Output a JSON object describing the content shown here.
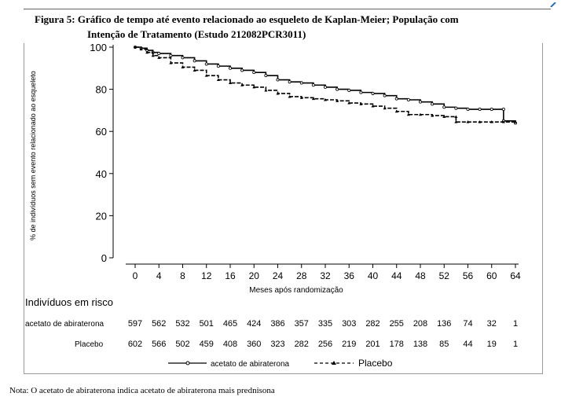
{
  "figure": {
    "title_line_1": "Figura 5: Gráfico de tempo até evento relacionado ao esqueleto de Kaplan-Meier; População com",
    "title_line_2": "Intenção de Tratamento (Estudo 212082PCR3011)",
    "footnote": "Nota: O acetato de abiraterona indica acetato de abiraterona mais prednisona"
  },
  "chart_data": {
    "type": "line",
    "title": "Gráfico de tempo até evento relacionado ao esqueleto de Kaplan-Meier; População com Intenção de Tratamento (Estudo 212082PCR3011)",
    "xlabel": "Meses após randomização",
    "ylabel": "% de indivíduos sem evento relacionado ao esqueleto",
    "xlim": [
      0,
      64
    ],
    "ylim": [
      0,
      100
    ],
    "xticks": [
      0,
      4,
      8,
      12,
      16,
      20,
      24,
      28,
      32,
      36,
      40,
      44,
      48,
      52,
      56,
      60,
      64
    ],
    "yticks": [
      0,
      20,
      40,
      60,
      80,
      100
    ],
    "legend_position": "bottom",
    "series": [
      {
        "name": "acetato de abiraterona",
        "style": "solid-circle",
        "color": "#000000",
        "x": [
          0,
          1,
          2,
          3,
          4,
          6,
          8,
          10,
          12,
          14,
          16,
          18,
          20,
          22,
          24,
          26,
          28,
          30,
          32,
          34,
          36,
          38,
          40,
          42,
          44,
          46,
          48,
          50,
          52,
          54,
          56,
          58,
          60,
          62,
          62,
          64
        ],
        "y": [
          100,
          99.5,
          98.5,
          97.5,
          97,
          96,
          95,
          93.5,
          92,
          91,
          90,
          89,
          88,
          86.5,
          84.5,
          83.5,
          83,
          82,
          81,
          80,
          79.5,
          78.5,
          78,
          77,
          75.5,
          75,
          74,
          73,
          71.5,
          71,
          70.5,
          70.5,
          70.5,
          70.5,
          65,
          64
        ]
      },
      {
        "name": "Placebo",
        "style": "dashed-triangle",
        "color": "#000000",
        "x": [
          0,
          1,
          2,
          3,
          4,
          6,
          8,
          10,
          12,
          14,
          16,
          18,
          20,
          22,
          24,
          26,
          28,
          30,
          32,
          34,
          36,
          38,
          40,
          42,
          44,
          46,
          48,
          50,
          52,
          54,
          54,
          56,
          58,
          60,
          62,
          64
        ],
        "y": [
          100,
          99,
          97.5,
          96,
          95,
          92.5,
          90.5,
          89,
          86.5,
          84.5,
          83,
          82,
          81,
          79.5,
          78,
          76.5,
          76,
          75.5,
          75,
          74.5,
          73.5,
          73,
          72,
          71,
          69.5,
          68,
          68,
          67.5,
          67,
          67,
          64.5,
          64.5,
          64.5,
          64.5,
          64.5,
          64.5
        ]
      }
    ],
    "risk_table": {
      "header": "Indivíduos em risco",
      "rows": [
        {
          "label": "acetato de abiraterona",
          "values": [
            "597",
            "562",
            "532",
            "501",
            "465",
            "424",
            "386",
            "357",
            "335",
            "303",
            "282",
            "255",
            "208",
            "136",
            "74",
            "32",
            "1"
          ]
        },
        {
          "label": "Placebo",
          "values": [
            "602",
            "566",
            "502",
            "459",
            "408",
            "360",
            "323",
            "282",
            "256",
            "219",
            "201",
            "178",
            "138",
            "85",
            "44",
            "19",
            "1"
          ]
        }
      ]
    }
  }
}
